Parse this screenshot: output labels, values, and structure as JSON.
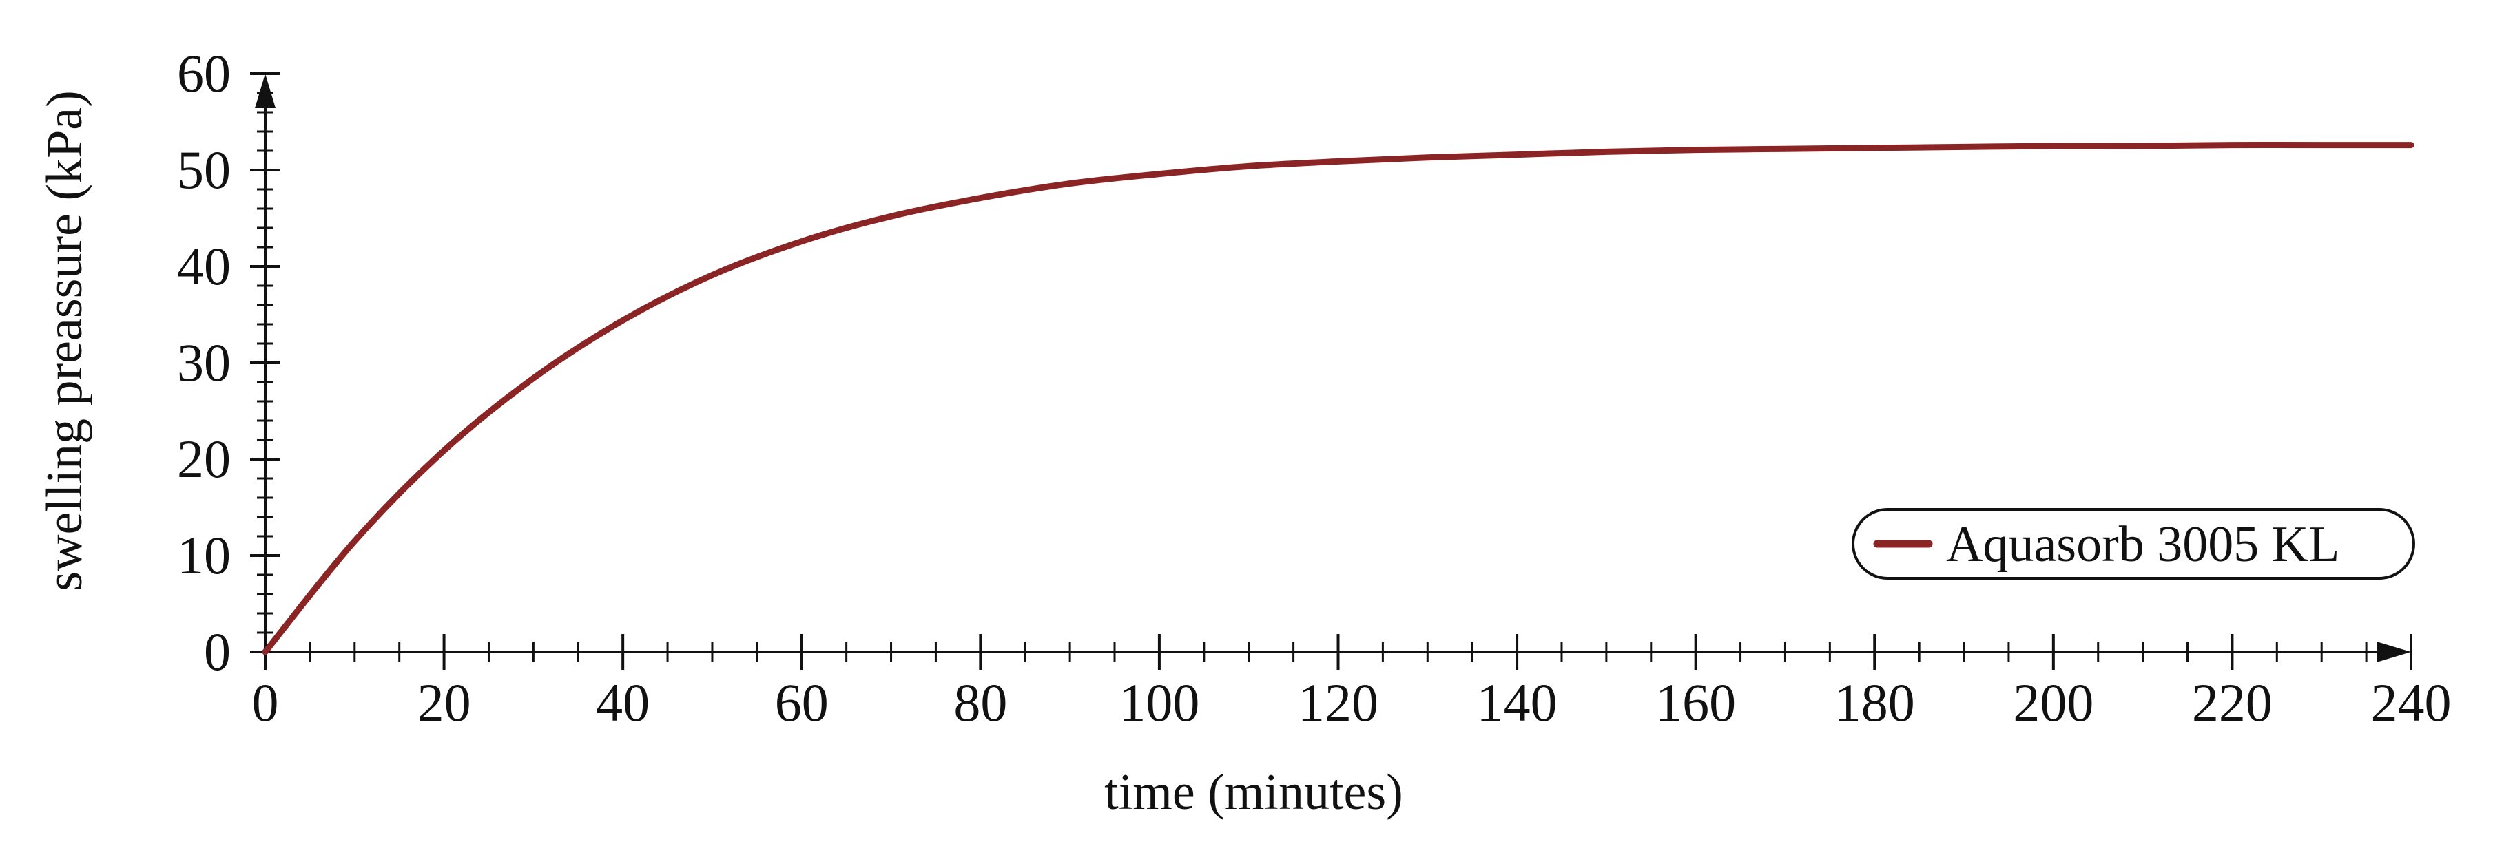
{
  "chart_data": {
    "type": "line",
    "xlabel": "time (minutes)",
    "ylabel": "swelling preassure (kPa)",
    "xlim": [
      0,
      240
    ],
    "ylim": [
      0,
      60
    ],
    "x_ticks": [
      0,
      20,
      40,
      60,
      80,
      100,
      120,
      140,
      160,
      180,
      200,
      220,
      240
    ],
    "y_ticks": [
      0,
      10,
      20,
      30,
      40,
      50,
      60
    ],
    "grid": false,
    "legend_position": "bottom-right",
    "line_color": "#8b2424",
    "series": [
      {
        "name": "Aquasorb 3005 KL",
        "x": [
          0,
          10,
          20,
          30,
          40,
          50,
          60,
          70,
          80,
          90,
          100,
          110,
          120,
          130,
          140,
          150,
          160,
          170,
          180,
          190,
          200,
          210,
          220,
          230,
          240
        ],
        "y": [
          0,
          11.5,
          20.9,
          28.4,
          34.4,
          39.1,
          42.6,
          45.2,
          47.1,
          48.6,
          49.6,
          50.4,
          50.9,
          51.3,
          51.6,
          51.9,
          52.1,
          52.2,
          52.3,
          52.4,
          52.5,
          52.5,
          52.6,
          52.6,
          52.6
        ]
      }
    ]
  }
}
